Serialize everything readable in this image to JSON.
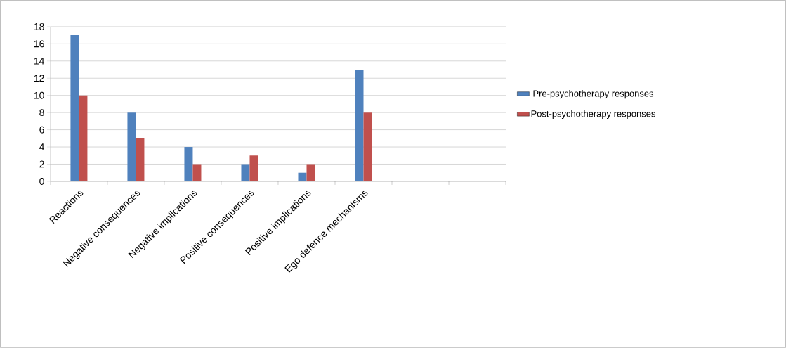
{
  "chart_data": {
    "type": "bar",
    "categories": [
      "Reactions",
      "Negative consequences",
      "Negative implications",
      "Positive consequences",
      "Positive implications",
      "Ego defence mechanisms",
      null,
      null
    ],
    "series": [
      {
        "name": "Pre-psychotherapy responses",
        "color": "#4f81bd",
        "values": [
          17,
          8,
          4,
          2,
          1,
          13,
          null,
          null
        ]
      },
      {
        "name": "Post-psychotherapy responses",
        "color": "#c0504d",
        "values": [
          10,
          5,
          2,
          3,
          2,
          8,
          null,
          null
        ]
      }
    ],
    "ylim": [
      0,
      18
    ],
    "yticks": [
      0,
      2,
      4,
      6,
      8,
      10,
      12,
      14,
      16,
      18
    ],
    "grid": "y",
    "legend": "right"
  }
}
